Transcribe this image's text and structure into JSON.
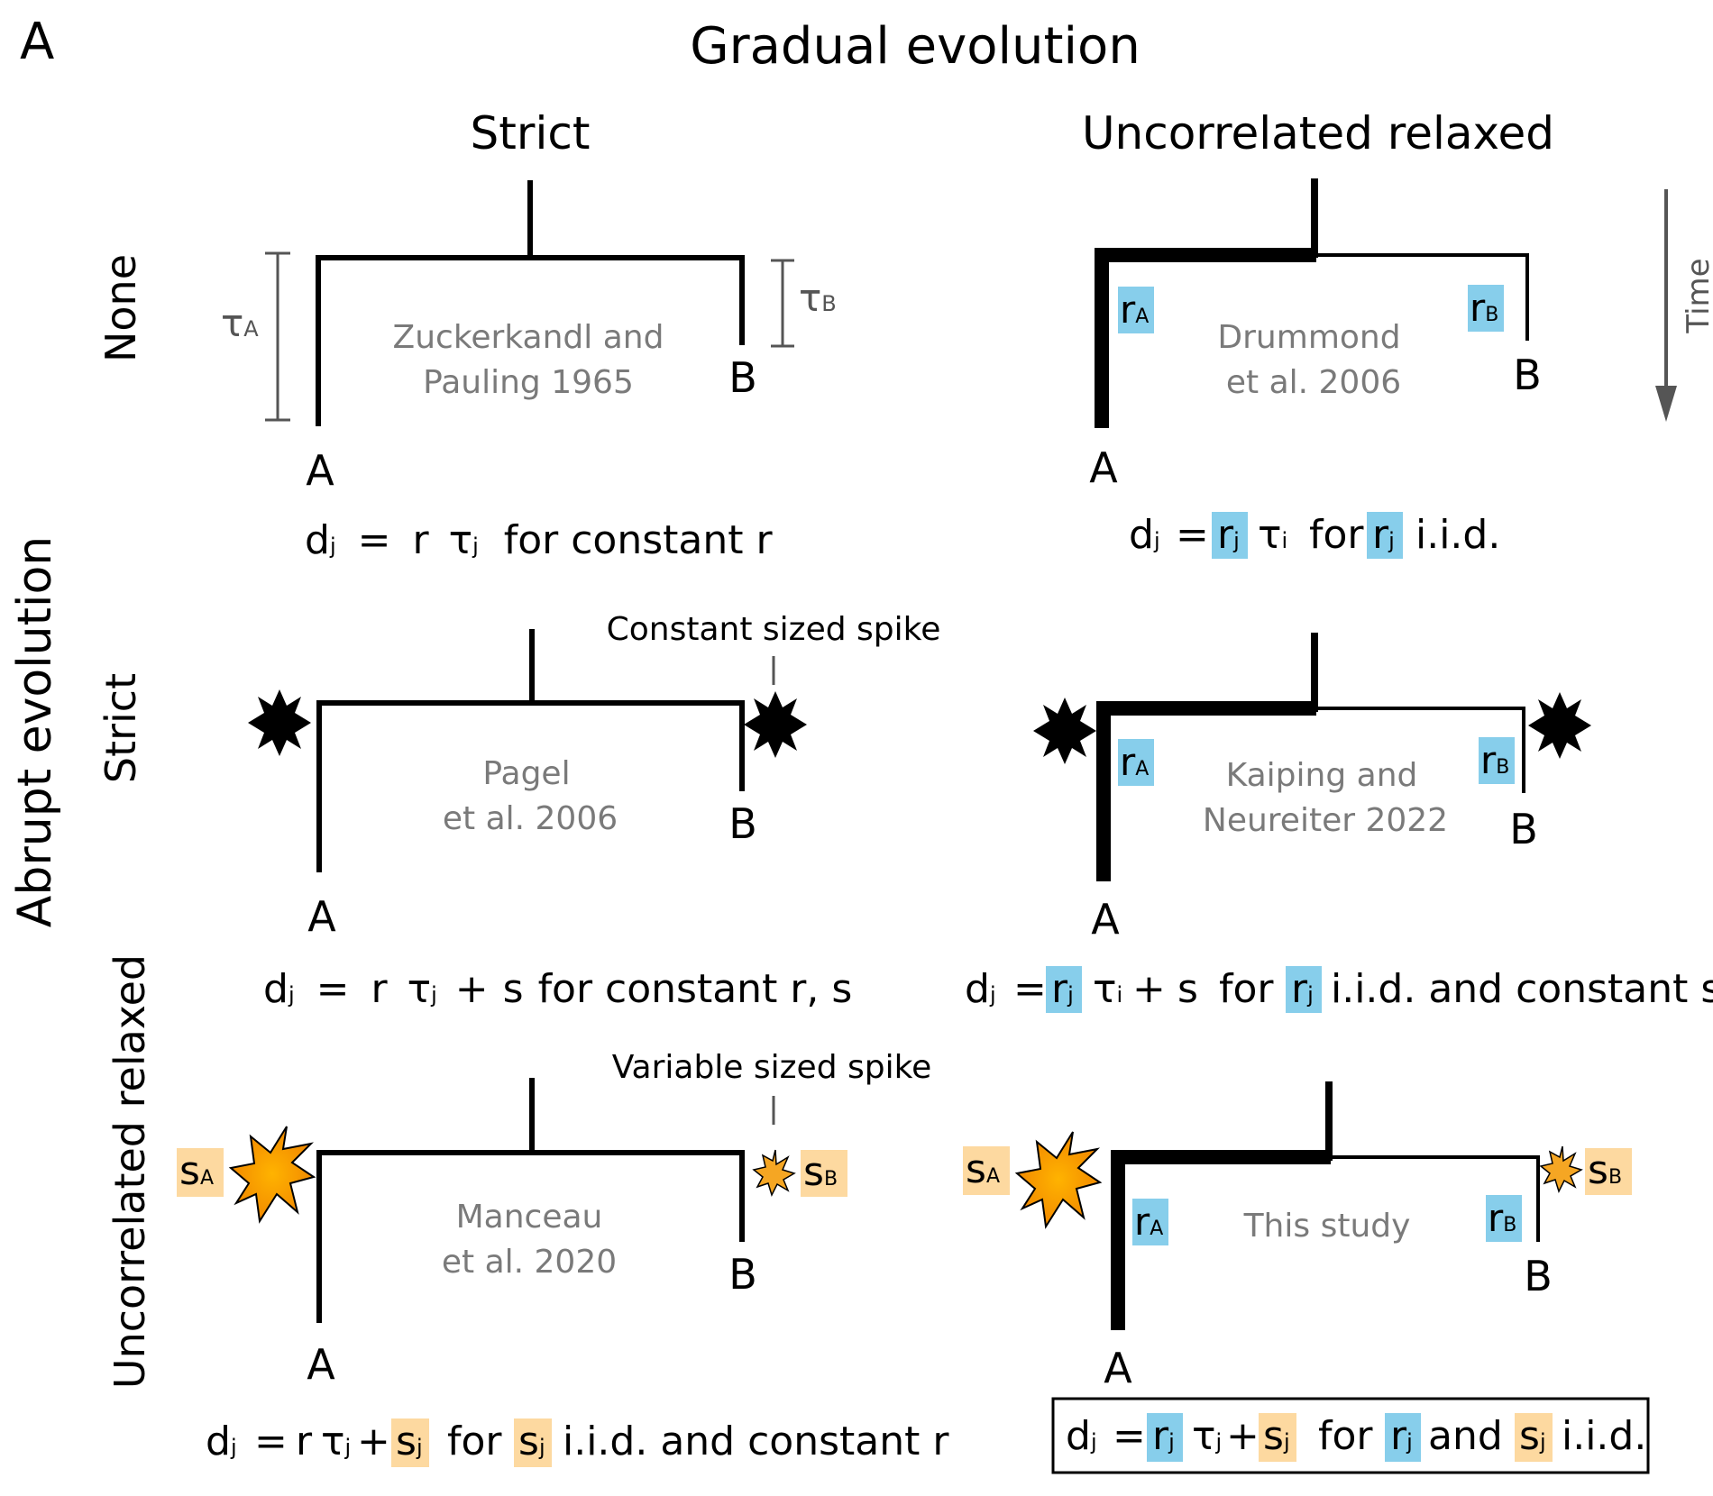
{
  "panel_letter": "A",
  "title": "Gradual evolution",
  "y_axis_title": "Abrupt evolution",
  "columns": {
    "strict": "Strict",
    "relaxed": "Uncorrelated relaxed"
  },
  "rows": {
    "none": "None",
    "strict": "Strict",
    "relaxed": "Uncorrelated relaxed"
  },
  "time_label": "Time",
  "tips": {
    "a": "A",
    "b": "B"
  },
  "symbols": {
    "tau": "τ",
    "tau_a_sub": "A",
    "tau_b_sub": "B",
    "r": "r",
    "s": "s",
    "sub_a": "A",
    "sub_b": "B"
  },
  "citations": {
    "c11_l1": "Zuckerkandl and",
    "c11_l2": "Pauling 1965",
    "c12_l1": "Drummond",
    "c12_l2": "et al. 2006",
    "c21_l1": "Pagel",
    "c21_l2": "et al. 2006",
    "c22_l1": "Kaiping and",
    "c22_l2": "Neureiter 2022",
    "c31_l1": "Manceau",
    "c31_l2": "et al. 2020",
    "c32_l1": "This study"
  },
  "spike_labels": {
    "constant": "Constant sized spike",
    "variable": "Variable sized spike"
  },
  "formulas": {
    "d": "d",
    "j": "j",
    "i": "i",
    "eq": "=",
    "plus": "+",
    "r": "r",
    "s": "s",
    "tau": "τ",
    "f1_tail": "for constant r",
    "f2_for": "for",
    "f2_tail": "i.i.d.",
    "f3_tail": "for constant r, s",
    "f4_for": "for",
    "f4_tail": "i.i.d. and constant s",
    "f5_for": "for",
    "f5_tail": "i.i.d. and constant r",
    "f6_for": "for",
    "f6_and": "and",
    "f6_tail": "i.i.d."
  },
  "colors": {
    "rate_highlight": "#87ceeb",
    "spike_highlight": "#fdd9a0",
    "citation_text": "#7a7a7a",
    "spike_fill": "#f5a623"
  }
}
